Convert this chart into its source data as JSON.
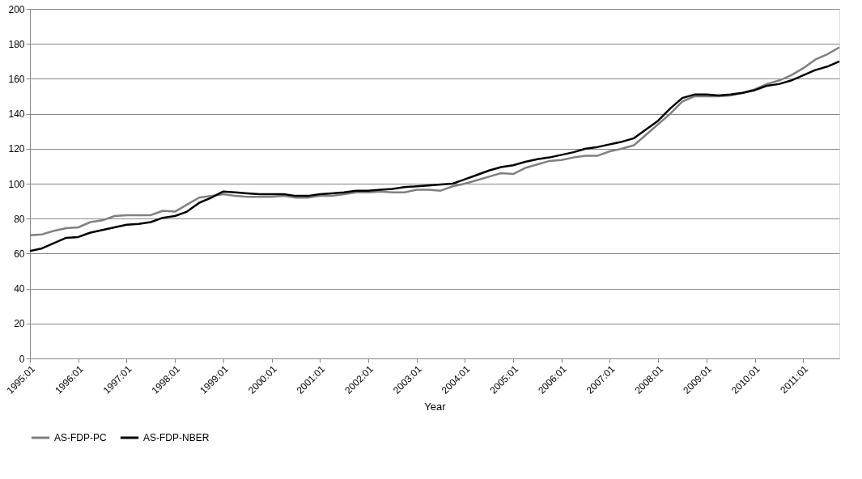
{
  "chart_data": {
    "type": "line",
    "xlabel": "Year",
    "categories": [
      "1995:01",
      null,
      null,
      null,
      "1996:01",
      null,
      null,
      null,
      "1997:01",
      null,
      null,
      null,
      "1998:01",
      null,
      null,
      null,
      "1999:01",
      null,
      null,
      null,
      "2000:01",
      null,
      null,
      null,
      "2001:01",
      null,
      null,
      null,
      "2002:01",
      null,
      null,
      null,
      "2003:01",
      null,
      null,
      null,
      "2004:01",
      null,
      null,
      null,
      "2005:01",
      null,
      null,
      null,
      "2006:01",
      null,
      null,
      null,
      "2007:01",
      null,
      null,
      null,
      "2008:01",
      null,
      null,
      null,
      "2009:01",
      null,
      null,
      null,
      "2010:01",
      null,
      null,
      null,
      "2011:01",
      null,
      null,
      null
    ],
    "series": [
      {
        "name": "AS-FDP-PC",
        "color": "#808080",
        "values": [
          70.5,
          71,
          73,
          74.5,
          75,
          78,
          79,
          81.5,
          82,
          82,
          82,
          84.5,
          84,
          88,
          92,
          93,
          94,
          93,
          92.5,
          92.5,
          92.5,
          93,
          92,
          92,
          93,
          93,
          94,
          95,
          95,
          95.5,
          95,
          95,
          96.5,
          96.5,
          96,
          98.5,
          100,
          102,
          104,
          106,
          105.5,
          109,
          111,
          113,
          113.5,
          115,
          116,
          116,
          118.5,
          120,
          122,
          128,
          134,
          140,
          147,
          150,
          150,
          150,
          150.5,
          152,
          154,
          157,
          159,
          162,
          166,
          171,
          174,
          178
        ]
      },
      {
        "name": "AS-FDP-NBER",
        "color": "#000000",
        "values": [
          61.5,
          63,
          66,
          69,
          69.5,
          72,
          73.5,
          75,
          76.5,
          77,
          78,
          80.5,
          81.5,
          84,
          89,
          92,
          95.5,
          95,
          94.5,
          94,
          94,
          94,
          93,
          93,
          94,
          94.5,
          95,
          96,
          96,
          96.5,
          97,
          98,
          98.5,
          99,
          99.5,
          100,
          102.5,
          105,
          107.5,
          109.5,
          110.5,
          112.5,
          114,
          115,
          116.5,
          118,
          120,
          121,
          122.5,
          124,
          126,
          131,
          136,
          143,
          149,
          151,
          151,
          150.5,
          151,
          152,
          153.5,
          156,
          157,
          159,
          162,
          165,
          167,
          170
        ]
      }
    ],
    "ylim": [
      0,
      200
    ],
    "yticks": [
      0,
      20,
      40,
      60,
      80,
      100,
      120,
      140,
      160,
      180,
      200
    ],
    "grid": "y",
    "legend": "bottom",
    "line_style": "solid",
    "marker": "none"
  }
}
